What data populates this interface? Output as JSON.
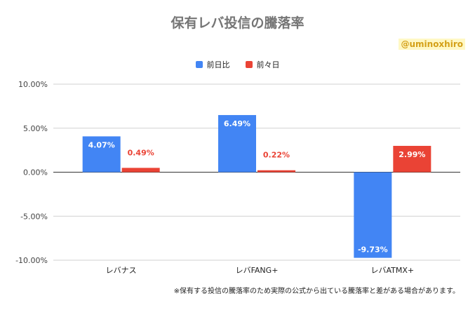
{
  "chart_data": {
    "type": "bar",
    "title": "保有レバ投信の騰落率",
    "categories": [
      "レバナス",
      "レバFANG+",
      "レバATMX+"
    ],
    "series": [
      {
        "name": "前日比",
        "color": "#4285f4",
        "values": [
          4.07,
          6.49,
          -9.73
        ],
        "labels": [
          "4.07%",
          "6.49%",
          "-9.73%"
        ]
      },
      {
        "name": "前々日",
        "color": "#ea4335",
        "values": [
          0.49,
          0.22,
          2.99
        ],
        "labels": [
          "0.49%",
          "0.22%",
          "2.99%"
        ]
      }
    ],
    "ylim": [
      -10,
      10
    ],
    "yticks": [
      10,
      5,
      0,
      -5,
      -10
    ],
    "ytick_labels": [
      "10.00%",
      "5.00%",
      "0.00%",
      "-5.00%",
      "-10.00%"
    ],
    "legend_position": "top",
    "grid": true
  },
  "author_handle": "@uminoxhiro",
  "footnote": "※保有する投信の騰落率のため実際の公式から出ている騰落率と差がある場合があります。"
}
